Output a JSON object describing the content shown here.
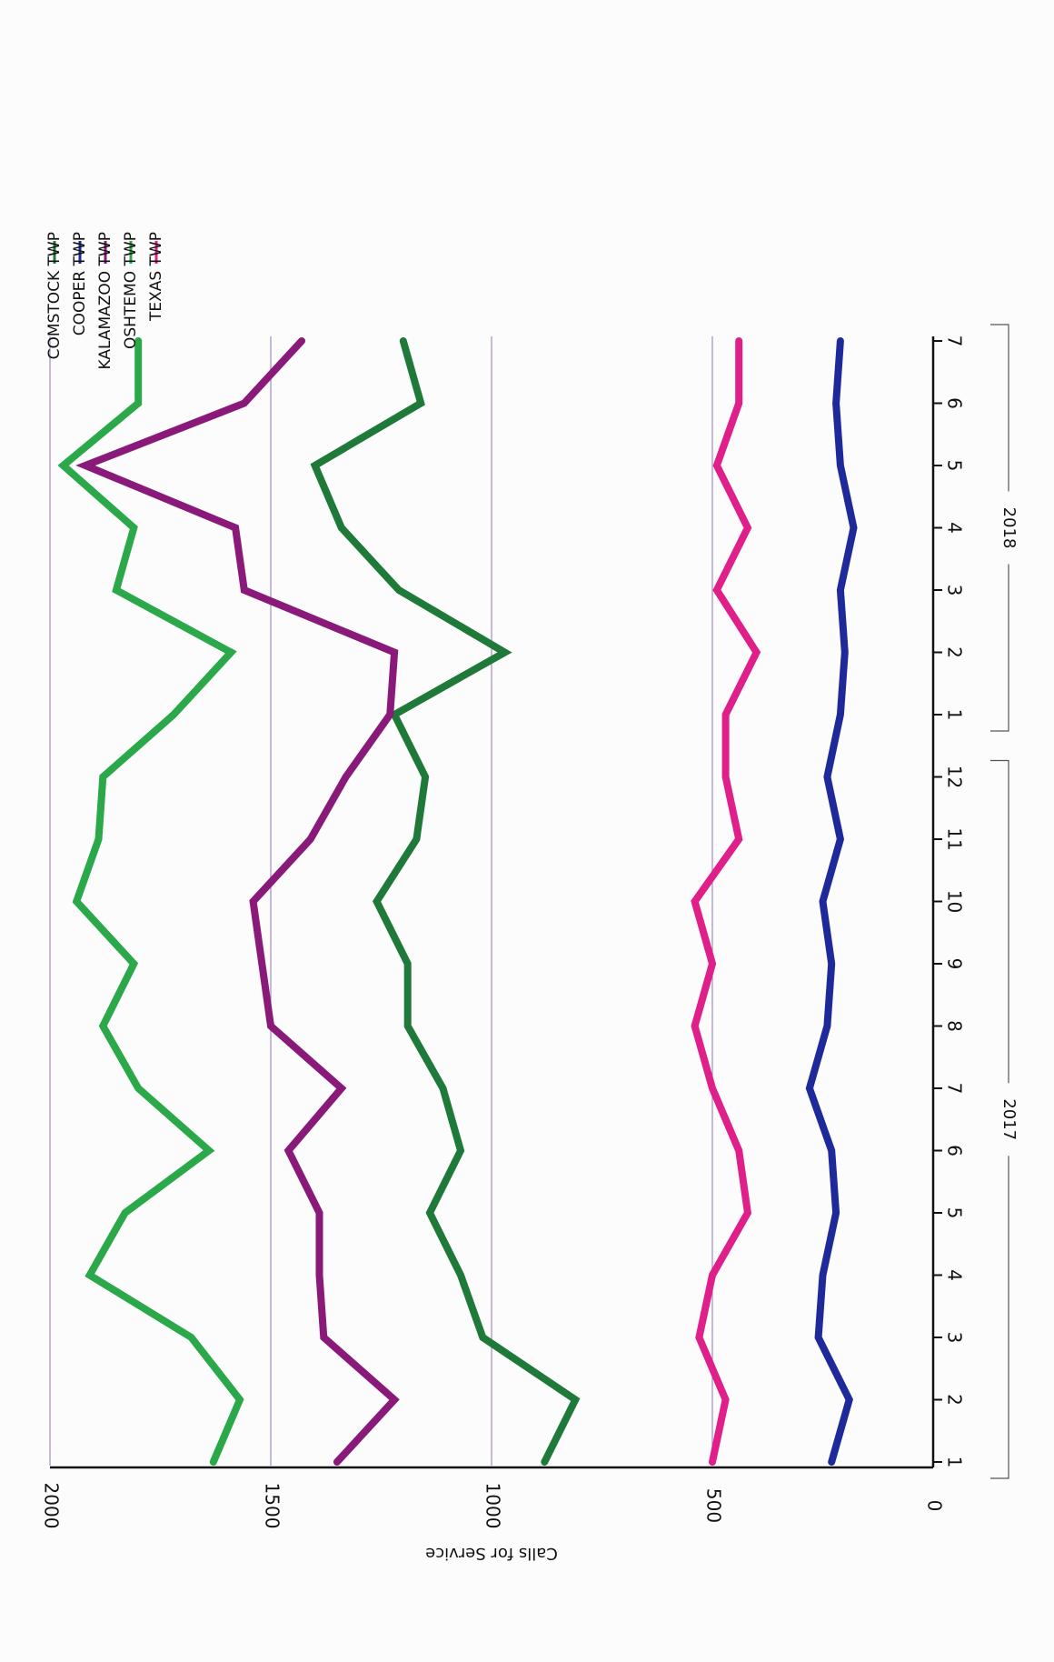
{
  "chart_data": {
    "type": "line",
    "orientation": "rotated 90 degrees clockwise",
    "ylabel": "Calls for Service",
    "ylim": [
      0,
      2000
    ],
    "yticks": [
      0,
      500,
      1000,
      1500,
      2000
    ],
    "categories": [
      "1",
      "2",
      "3",
      "4",
      "5",
      "6",
      "7",
      "8",
      "9",
      "10",
      "11",
      "12",
      "1",
      "2",
      "3",
      "4",
      "5",
      "6",
      "7"
    ],
    "year_groups": [
      {
        "label": "2017",
        "start": 0,
        "end": 11
      },
      {
        "label": "2018",
        "start": 12,
        "end": 18
      }
    ],
    "grid": "horizontal",
    "legend_position": "top-right",
    "series": [
      {
        "name": "COMSTOCK TWP",
        "color": "#1f7a3a",
        "values": [
          880,
          810,
          1020,
          1070,
          1140,
          1070,
          1110,
          1190,
          1190,
          1260,
          1170,
          1150,
          1220,
          970,
          1210,
          1340,
          1400,
          1160,
          1200
        ]
      },
      {
        "name": "COOPER TWP",
        "color": "#1f2a9a",
        "values": [
          230,
          190,
          260,
          250,
          220,
          230,
          280,
          240,
          230,
          250,
          210,
          240,
          210,
          200,
          210,
          180,
          210,
          220,
          210
        ]
      },
      {
        "name": "KALAMAZOO TWP",
        "color": "#8a1a7a",
        "values": [
          1350,
          1220,
          1380,
          1390,
          1390,
          1460,
          1340,
          1500,
          1520,
          1540,
          1410,
          1330,
          1230,
          1220,
          1560,
          1580,
          1920,
          1560,
          1430
        ]
      },
      {
        "name": "OSHTEMO TWP",
        "color": "#2aa84a",
        "values": [
          1630,
          1570,
          1680,
          1910,
          1830,
          1640,
          1800,
          1880,
          1810,
          1940,
          1890,
          1880,
          1720,
          1590,
          1850,
          1810,
          1970,
          1800,
          1800
        ]
      },
      {
        "name": "TEXAS TWP",
        "color": "#e0208a",
        "values": [
          500,
          470,
          530,
          500,
          420,
          440,
          500,
          540,
          500,
          540,
          440,
          470,
          470,
          400,
          490,
          420,
          490,
          440,
          440
        ]
      }
    ]
  }
}
